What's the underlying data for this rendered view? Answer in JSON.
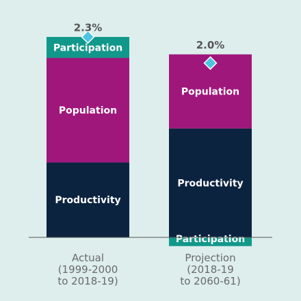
{
  "chart_data": {
    "type": "stacked-bar",
    "categories": [
      "Actual\n(1999-2000\nto 2018-19)",
      "Projection\n(2018-19\nto 2060-61)"
    ],
    "series": [
      {
        "name": "Productivity",
        "color": "#0c2340",
        "values": [
          0.86,
          1.25
        ]
      },
      {
        "name": "Population",
        "color": "#a0177b",
        "values": [
          1.2,
          0.85
        ]
      },
      {
        "name": "Participation",
        "color": "#12988a",
        "values": [
          0.24,
          -0.1
        ]
      }
    ],
    "totals": {
      "values": [
        2.3,
        2.0
      ],
      "value_labels": [
        "2.3%",
        "2.0%"
      ],
      "color": "#4cc3e3"
    }
  }
}
